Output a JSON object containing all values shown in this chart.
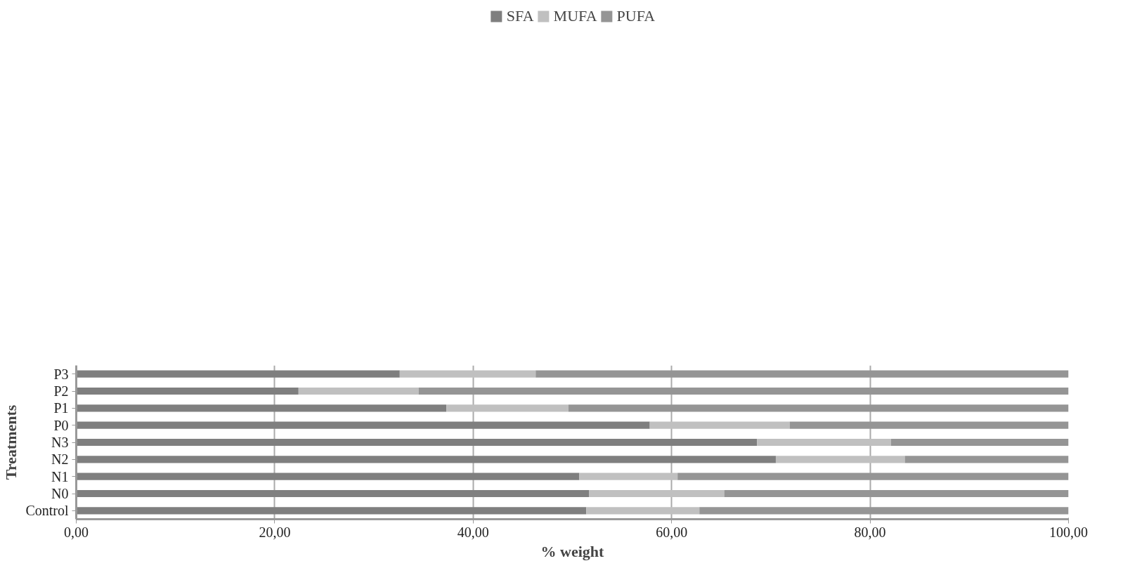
{
  "chart_data": {
    "type": "bar",
    "orientation": "horizontal",
    "stacked": true,
    "xlabel": "% weight",
    "ylabel": "Treatments",
    "categories": [
      "P3",
      "P2",
      "P1",
      "P0",
      "N3",
      "N2",
      "N1",
      "N0",
      "Control"
    ],
    "series": [
      {
        "name": "SFA",
        "color": "#7f7f7f",
        "values": [
          32.6,
          22.4,
          37.3,
          57.8,
          68.6,
          70.5,
          50.7,
          51.7,
          51.4
        ]
      },
      {
        "name": "MUFA",
        "color": "#c0c0c0",
        "values": [
          13.7,
          12.1,
          12.3,
          14.1,
          13.5,
          13.0,
          9.9,
          13.6,
          11.4
        ]
      },
      {
        "name": "PUFA",
        "color": "#959595",
        "values": [
          53.7,
          65.5,
          50.4,
          28.1,
          17.9,
          16.5,
          39.4,
          34.7,
          37.2
        ]
      }
    ],
    "xlim": [
      0,
      100
    ],
    "xticks": [
      {
        "value": 0,
        "label": "0,00"
      },
      {
        "value": 20,
        "label": "20,00"
      },
      {
        "value": 40,
        "label": "40,00"
      },
      {
        "value": 60,
        "label": "60,00"
      },
      {
        "value": 80,
        "label": "80,00"
      },
      {
        "value": 100,
        "label": "100,00"
      }
    ],
    "grid": "x",
    "legend": "top"
  }
}
